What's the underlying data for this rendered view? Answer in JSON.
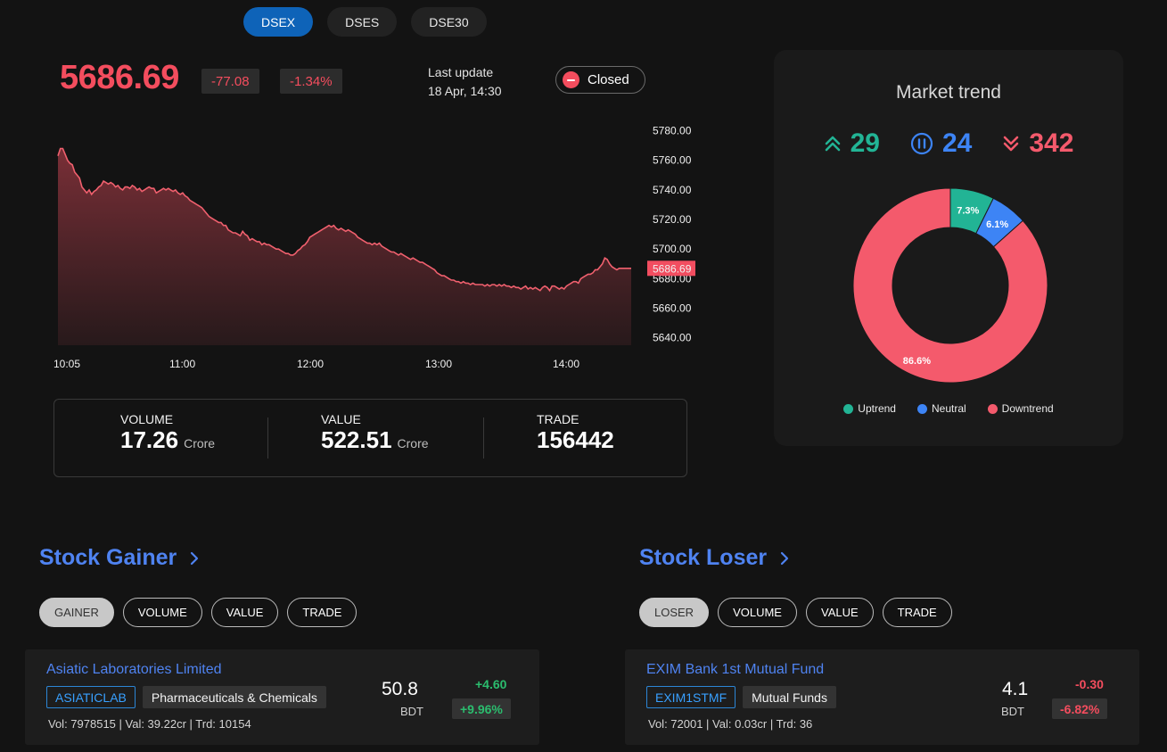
{
  "index_tabs": [
    {
      "label": "DSEX",
      "active": true
    },
    {
      "label": "DSES",
      "active": false
    },
    {
      "label": "DSE30",
      "active": false
    }
  ],
  "index": {
    "value": "5686.69",
    "change": "-77.08",
    "change_pct": "-1.34%",
    "last_update_label": "Last update",
    "last_update_time": "18 Apr, 14:30",
    "status": "Closed"
  },
  "chart_data": {
    "type": "area",
    "x_ticks": [
      "10:05",
      "11:00",
      "12:00",
      "13:00",
      "14:00"
    ],
    "y_ticks": [
      "5780.00",
      "5760.00",
      "5740.00",
      "5720.00",
      "5700.00",
      "5680.00",
      "5660.00",
      "5640.00"
    ],
    "ylim": [
      5635,
      5790
    ],
    "last_value_label": "5686.69",
    "last_value": 5686.69,
    "series": [
      {
        "values": [
          5763,
          5768,
          5768,
          5764,
          5760,
          5758,
          5757,
          5752,
          5750,
          5748,
          5742,
          5740,
          5738,
          5740,
          5737,
          5739,
          5740,
          5742,
          5743,
          5746,
          5745,
          5744,
          5745,
          5744,
          5742,
          5743,
          5741,
          5740,
          5742,
          5742,
          5741,
          5743,
          5742,
          5740,
          5741,
          5739,
          5740,
          5741,
          5742,
          5741,
          5741,
          5738,
          5739,
          5740,
          5741,
          5740,
          5741,
          5740,
          5739,
          5740,
          5738,
          5737,
          5738,
          5736,
          5735,
          5733,
          5732,
          5731,
          5730,
          5729,
          5728,
          5726,
          5724,
          5722,
          5721,
          5720,
          5719,
          5718,
          5718,
          5716,
          5716,
          5713,
          5712,
          5711,
          5711,
          5710,
          5709,
          5712,
          5710,
          5709,
          5706,
          5707,
          5706,
          5705,
          5705,
          5703,
          5704,
          5703,
          5703,
          5702,
          5701,
          5700,
          5700,
          5699,
          5698,
          5697,
          5697,
          5696,
          5696,
          5697,
          5699,
          5700,
          5702,
          5703,
          5705,
          5708,
          5709,
          5710,
          5711,
          5712,
          5713,
          5714,
          5715,
          5716,
          5715,
          5716,
          5714,
          5713,
          5714,
          5713,
          5712,
          5713,
          5712,
          5711,
          5710,
          5708,
          5707,
          5706,
          5705,
          5704,
          5704,
          5703,
          5704,
          5703,
          5704,
          5702,
          5701,
          5700,
          5699,
          5698,
          5698,
          5697,
          5696,
          5697,
          5696,
          5695,
          5694,
          5693,
          5694,
          5693,
          5692,
          5691,
          5691,
          5690,
          5689,
          5688,
          5687,
          5686,
          5684,
          5683,
          5682,
          5682,
          5681,
          5680,
          5679,
          5679,
          5678,
          5678,
          5677,
          5678,
          5677,
          5677,
          5676,
          5677,
          5676,
          5676,
          5676,
          5676,
          5675,
          5676,
          5675,
          5676,
          5676,
          5675,
          5676,
          5675,
          5676,
          5675,
          5675,
          5674,
          5675,
          5674,
          5674,
          5673,
          5674,
          5675,
          5673,
          5674,
          5673,
          5674,
          5673,
          5672,
          5674,
          5675,
          5674,
          5672,
          5675,
          5675,
          5674,
          5673,
          5674,
          5673,
          5675,
          5676,
          5677,
          5678,
          5678,
          5677,
          5680,
          5681,
          5682,
          5683,
          5683,
          5684,
          5686,
          5686,
          5688,
          5690,
          5694,
          5693,
          5690,
          5688,
          5687,
          5686,
          5687,
          5687,
          5687,
          5687,
          5687,
          5687
        ]
      }
    ]
  },
  "stats": {
    "volume": {
      "label": "VOLUME",
      "value": "17.26",
      "unit": "Crore"
    },
    "value": {
      "label": "VALUE",
      "value": "522.51",
      "unit": "Crore"
    },
    "trade": {
      "label": "TRADE",
      "value": "156442"
    }
  },
  "market_trend": {
    "title": "Market trend",
    "up": "29",
    "neutral": "24",
    "down": "342",
    "colors": {
      "up": "#22b495",
      "neutral": "#3d84f5",
      "down": "#f45a6c"
    },
    "donut": {
      "type": "pie",
      "slices": [
        {
          "name": "Uptrend",
          "value": 7.3,
          "label": "7.3%"
        },
        {
          "name": "Neutral",
          "value": 6.1,
          "label": "6.1%"
        },
        {
          "name": "Downtrend",
          "value": 86.6,
          "label": "86.6%"
        }
      ]
    },
    "legend": [
      "Uptrend",
      "Neutral",
      "Downtrend"
    ]
  },
  "gainer_section": {
    "title": "Stock Gainer",
    "chips": [
      "GAINER",
      "VOLUME",
      "VALUE",
      "TRADE"
    ],
    "card": {
      "name": "Asiatic Laboratories Limited",
      "code": "ASIATICLAB",
      "sector": "Pharmaceuticals & Chemicals",
      "meta": "Vol: 7978515 | Val: 39.22cr | Trd: 10154",
      "price": "50.8",
      "currency": "BDT",
      "change": "+4.60",
      "change_pct": "+9.96%"
    }
  },
  "loser_section": {
    "title": "Stock Loser",
    "chips": [
      "LOSER",
      "VOLUME",
      "VALUE",
      "TRADE"
    ],
    "card": {
      "name": "EXIM Bank 1st Mutual Fund",
      "code": "EXIM1STMF",
      "sector": "Mutual Funds",
      "meta": "Vol: 72001 | Val: 0.03cr | Trd: 36",
      "price": "4.1",
      "currency": "BDT",
      "change": "-0.30",
      "change_pct": "-6.82%"
    }
  }
}
